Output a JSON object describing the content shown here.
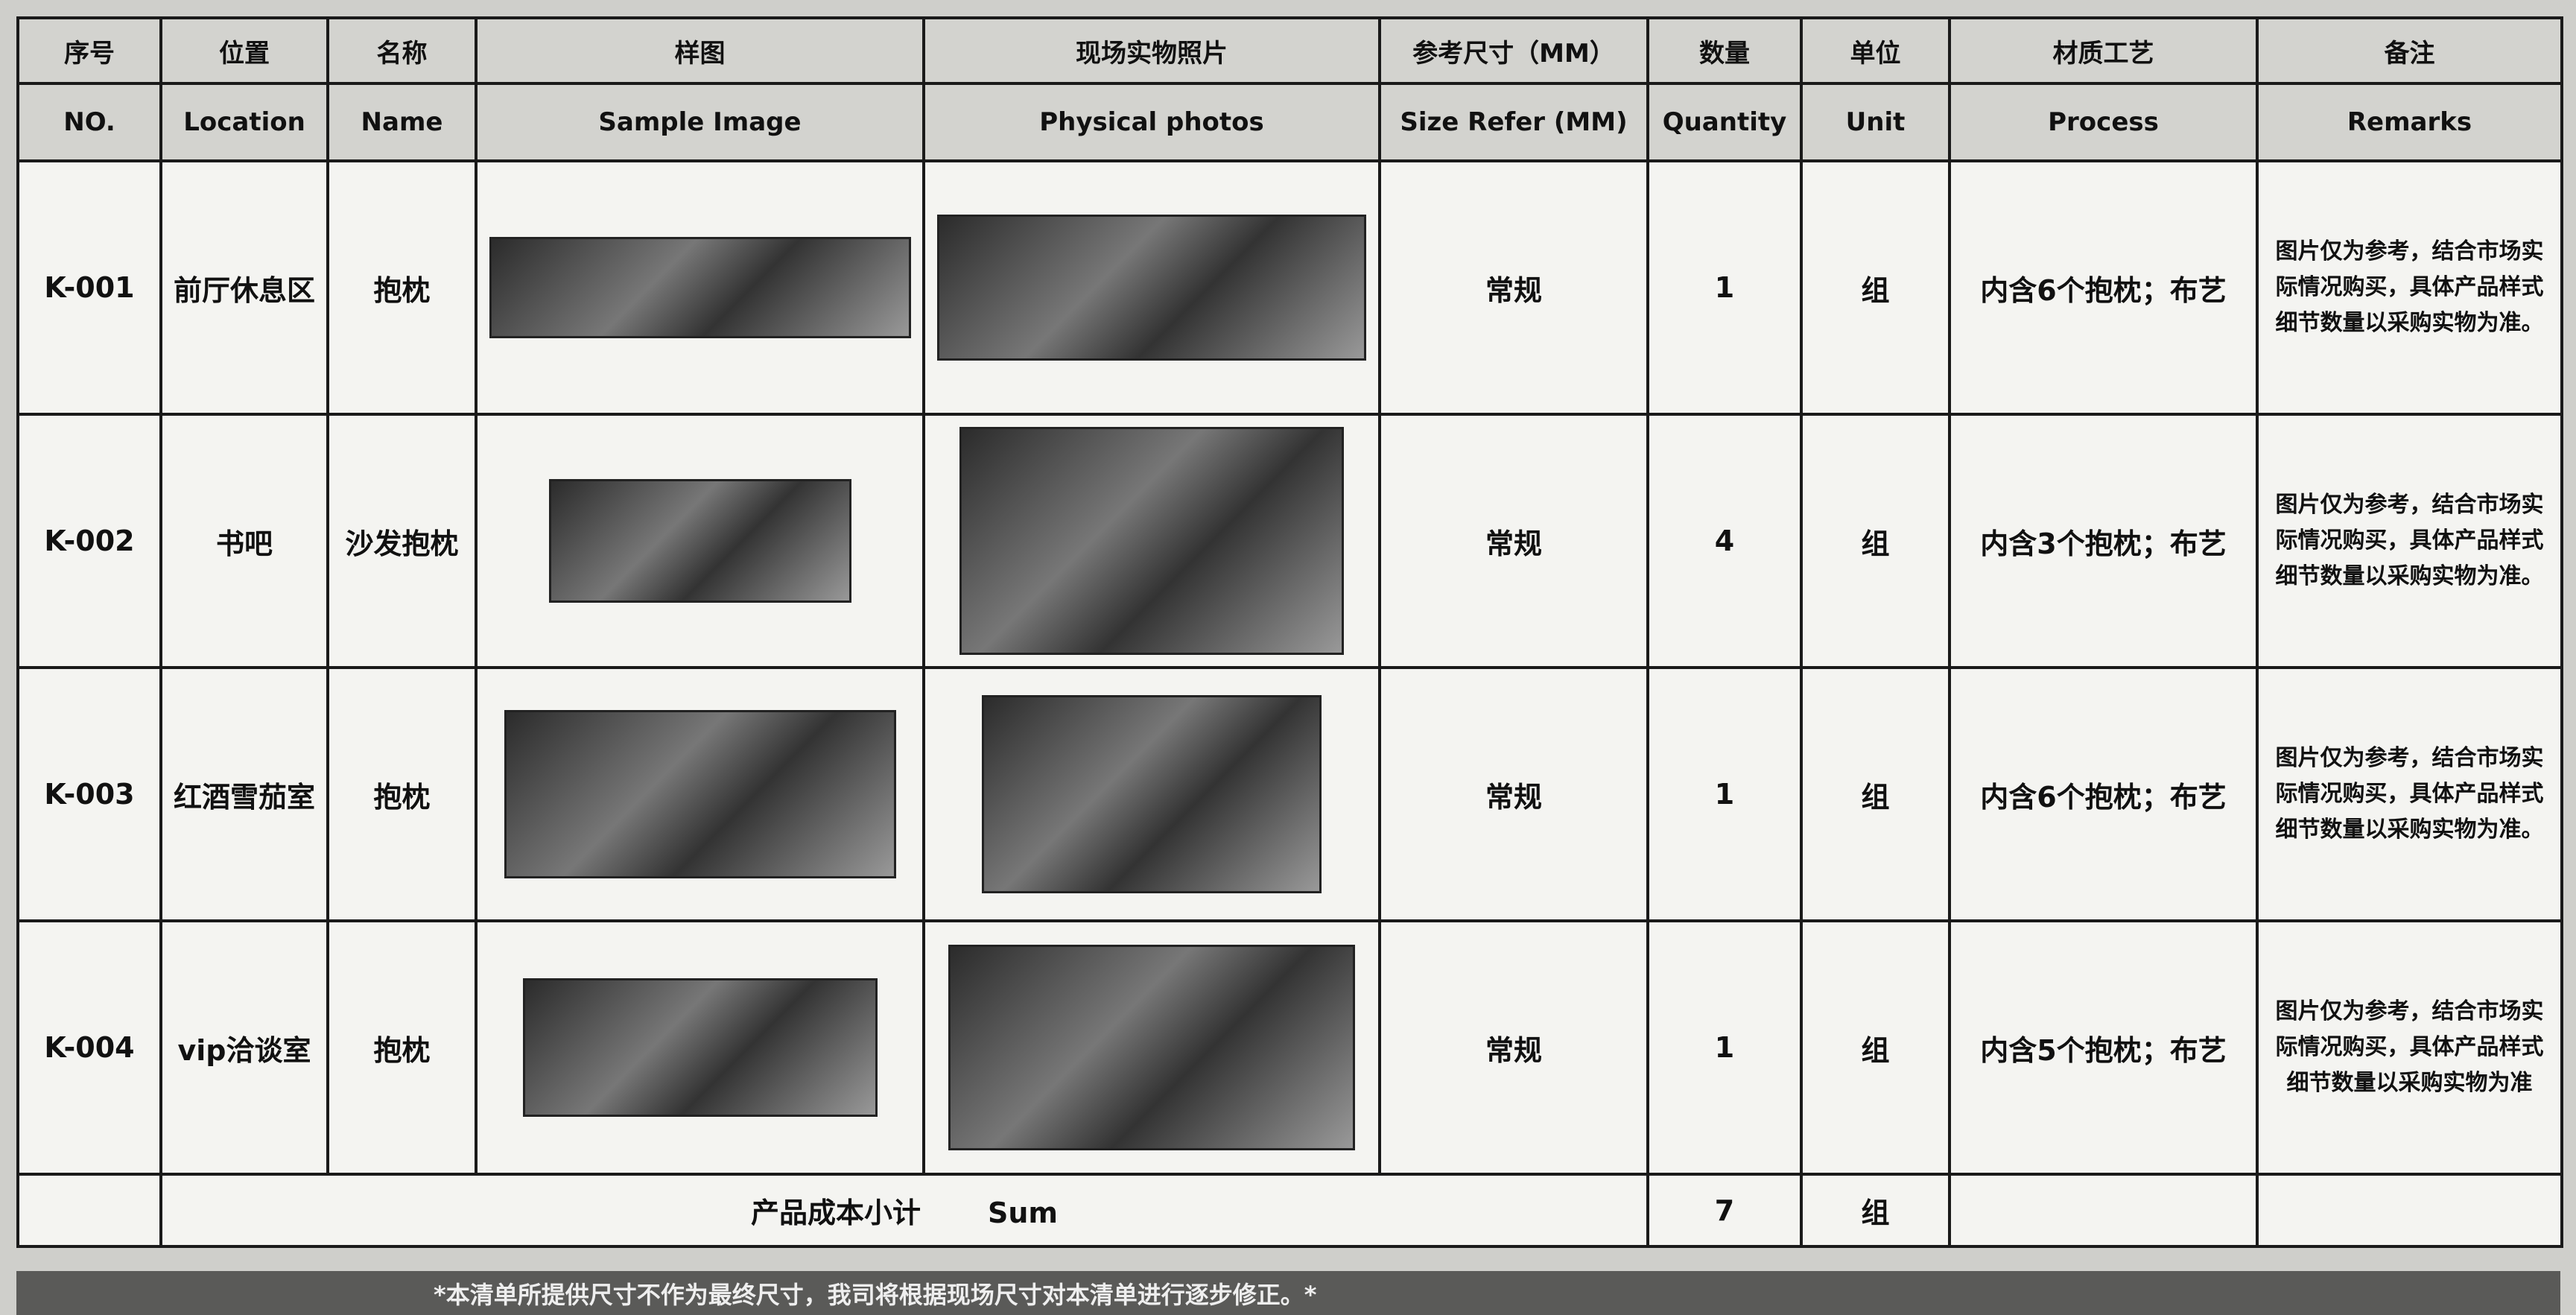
{
  "table": {
    "header_cn": [
      "序号",
      "位置",
      "名称",
      "样图",
      "现场实物照片",
      "参考尺寸（MM）",
      "数量",
      "单位",
      "材质工艺",
      "备注"
    ],
    "header_en": [
      "NO.",
      "Location",
      "Name",
      "Sample Image",
      "Physical photos",
      "Size Refer (MM)",
      "Quantity",
      "Unit",
      "Process",
      "Remarks"
    ],
    "rows": [
      {
        "no": "K-001",
        "location": "前厅休息区",
        "name": "抱枕",
        "size": "常规",
        "quantity": 1,
        "unit": "组",
        "process": "内含6个抱枕；布艺",
        "remarks": "图片仅为参考，结合市场实际情况购买，具体产品样式细节数量以采购实物为准。"
      },
      {
        "no": "K-002",
        "location": "书吧",
        "name": "沙发抱枕",
        "size": "常规",
        "quantity": 4,
        "unit": "组",
        "process": "内含3个抱枕；布艺",
        "remarks": "图片仅为参考，结合市场实际情况购买，具体产品样式细节数量以采购实物为准。"
      },
      {
        "no": "K-003",
        "location": "红酒雪茄室",
        "name": "抱枕",
        "size": "常规",
        "quantity": 1,
        "unit": "组",
        "process": "内含6个抱枕；布艺",
        "remarks": "图片仅为参考，结合市场实际情况购买，具体产品样式细节数量以采购实物为准。"
      },
      {
        "no": "K-004",
        "location": "vip洽谈室",
        "name": "抱枕",
        "size": "常规",
        "quantity": 1,
        "unit": "组",
        "process": "内含5个抱枕；布艺",
        "remarks": "图片仅为参考，结合市场实际情况购买，具体产品样式细节数量以采购实物为准"
      }
    ],
    "sum": {
      "label_cn": "产品成本小计",
      "label_en": "Sum",
      "quantity": 7,
      "unit": "组"
    },
    "footer_note": "*本清单所提供尺寸不作为最终尺寸，我司将根据现场尺寸对本清单进行逐步修正。*"
  }
}
